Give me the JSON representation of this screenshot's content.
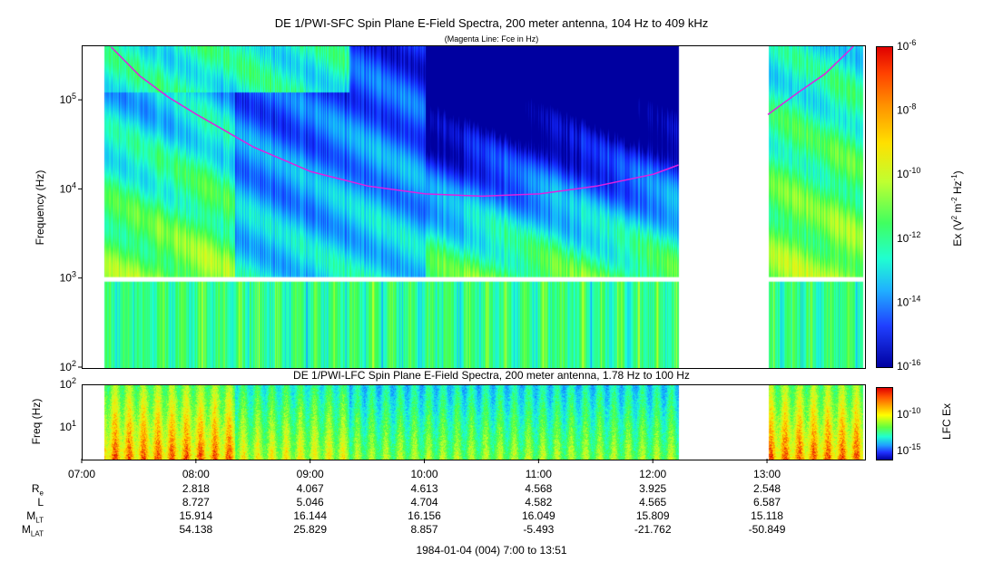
{
  "top_title": "DE 1/PWI-SFC  Spin Plane E-Field Spectra, 200 meter antenna, 104 Hz to 409 kHz",
  "top_subtitle": "(Magenta Line: Fce in Hz)",
  "bottom_title": "DE 1/PWI-LFC  Spin Plane E-Field Spectra, 200 meter antenna, 1.78 Hz to 100 Hz",
  "footer": "1984-01-04 (004) 7:00 to 13:51",
  "colors": {
    "magenta_line": "#e020e0",
    "background_low": "#0000a0"
  },
  "chart_data": [
    {
      "type": "heatmap",
      "title": "DE 1/PWI-SFC  Spin Plane E-Field Spectra, 200 meter antenna, 104 Hz to 409 kHz",
      "subtitle": "(Magenta Line: Fce in Hz)",
      "ylabel": "Frequency (Hz)",
      "yscale": "log",
      "ylim": [
        100,
        409000
      ],
      "yticks": [
        "10^2",
        "10^3",
        "10^4",
        "10^5"
      ],
      "colorbar": {
        "label": "Ex (V^2 m^-2 Hz^-1)",
        "scale": "log",
        "range": [
          1e-16,
          1e-06
        ],
        "ticks": [
          "10^-6",
          "10^-8",
          "10^-10",
          "10^-12",
          "10^-14",
          "10^-16"
        ]
      },
      "data_gaps": [
        [
          "12:13",
          "13:00"
        ]
      ],
      "series": [
        {
          "name": "Fce",
          "x": [
            "07:15",
            "07:30",
            "07:45",
            "08:00",
            "08:30",
            "09:00",
            "09:30",
            "10:00",
            "10:30",
            "11:00",
            "11:30",
            "12:00",
            "12:13",
            "13:00",
            "13:15",
            "13:30",
            "13:45"
          ],
          "y": [
            400000,
            190000,
            110000,
            70000,
            30000,
            16000,
            11000,
            9000,
            8500,
            9000,
            11000,
            15000,
            19000,
            70000,
            120000,
            200000,
            409000
          ]
        }
      ]
    },
    {
      "type": "heatmap",
      "title": "DE 1/PWI-LFC  Spin Plane E-Field Spectra, 200 meter antenna, 1.78 Hz to 100 Hz",
      "ylabel": "Freq (Hz)",
      "yscale": "log",
      "ylim": [
        1.78,
        100
      ],
      "yticks": [
        "10^1",
        "10^2"
      ],
      "colorbar": {
        "label": "LFC Ex",
        "scale": "log",
        "ticks": [
          "10^-10",
          "10^-15"
        ]
      },
      "data_gaps": [
        [
          "12:13",
          "13:00"
        ]
      ]
    }
  ],
  "time_axis": {
    "range": [
      "07:00",
      "13:51"
    ],
    "ticks": [
      "07:00",
      "08:00",
      "09:00",
      "10:00",
      "11:00",
      "12:00",
      "13:00"
    ]
  },
  "ephemeris": {
    "rows": [
      {
        "label": "R",
        "sub": "e",
        "values": [
          "2.818",
          "4.067",
          "4.613",
          "4.568",
          "3.925",
          "2.548"
        ]
      },
      {
        "label": "L",
        "sub": "",
        "values": [
          "8.727",
          "5.046",
          "4.704",
          "4.582",
          "4.565",
          "6.587"
        ]
      },
      {
        "label": "M",
        "sub": "LT",
        "values": [
          "15.914",
          "16.144",
          "16.156",
          "16.049",
          "15.809",
          "15.118"
        ]
      },
      {
        "label": "M",
        "sub": "LAT",
        "values": [
          "54.138",
          "25.829",
          "8.857",
          "-5.493",
          "-21.762",
          "-50.849"
        ]
      }
    ]
  }
}
